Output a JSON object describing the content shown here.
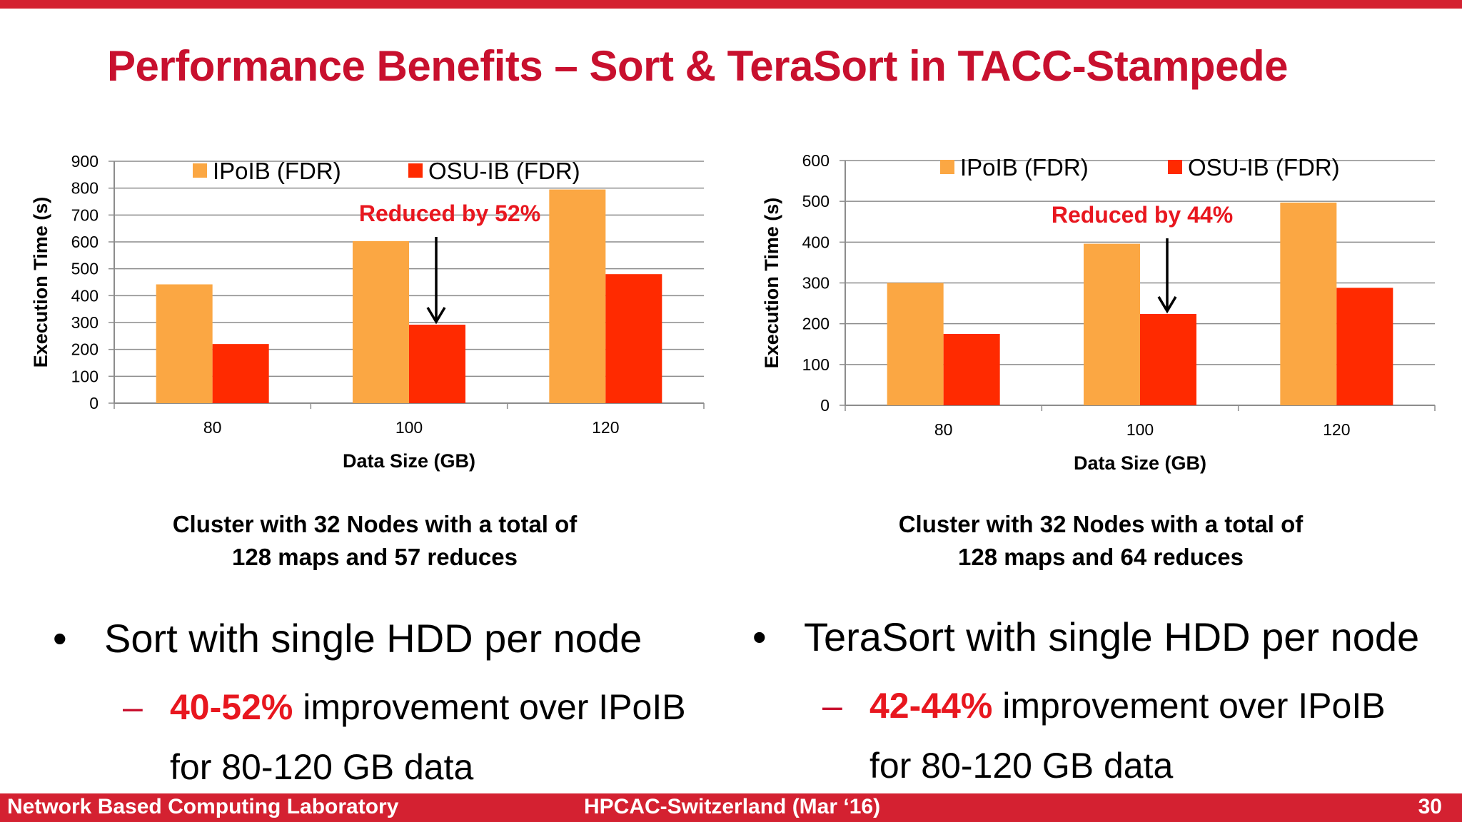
{
  "slide": {
    "title": "Performance Benefits – Sort & TeraSort in TACC-Stampede"
  },
  "colors": {
    "accent": "#d42131",
    "ipoib": "#fba743",
    "osu": "#ff2a00",
    "highlight": "#e8171f"
  },
  "chart_data": [
    {
      "type": "bar",
      "categories": [
        "80",
        "100",
        "120"
      ],
      "series": [
        {
          "name": "IPoIB (FDR)",
          "values": [
            442,
            603,
            795
          ]
        },
        {
          "name": "OSU-IB (FDR)",
          "values": [
            220,
            292,
            480
          ]
        }
      ],
      "xlabel": "Data Size (GB)",
      "ylabel": "Execution Time (s)",
      "ylim": [
        0,
        900
      ],
      "yticks": [
        "0",
        "100",
        "200",
        "300",
        "400",
        "500",
        "600",
        "700",
        "800",
        "900"
      ],
      "grid": true,
      "legend": "top",
      "annotation": {
        "text": "Reduced by 52%",
        "category": "100"
      }
    },
    {
      "type": "bar",
      "categories": [
        "80",
        "100",
        "120"
      ],
      "series": [
        {
          "name": "IPoIB (FDR)",
          "values": [
            300,
            396,
            497
          ]
        },
        {
          "name": "OSU-IB (FDR)",
          "values": [
            175,
            224,
            288
          ]
        }
      ],
      "xlabel": "Data Size (GB)",
      "ylabel": "Execution Time (s)",
      "ylim": [
        0,
        600
      ],
      "yticks": [
        "0",
        "100",
        "200",
        "300",
        "400",
        "500",
        "600"
      ],
      "grid": true,
      "legend": "top",
      "annotation": {
        "text": "Reduced by 44%",
        "category": "100"
      }
    }
  ],
  "captions": {
    "left": [
      "Cluster with 32 Nodes with a total of",
      "128 maps and 57 reduces"
    ],
    "right": [
      "Cluster with 32 Nodes with a total of",
      "128 maps and 64 reduces"
    ]
  },
  "bullets": {
    "left": {
      "dot": "•",
      "text": "Sort with single HDD per node",
      "dash": "–",
      "highlight": "40-52%",
      "rest": " improvement over IPoIB",
      "line2": "for 80-120 GB data"
    },
    "right": {
      "dot": "•",
      "text": "TeraSort with single HDD per node",
      "dash": "–",
      "highlight": "42-44%",
      "rest": " improvement over IPoIB",
      "line2": "for 80-120 GB data"
    }
  },
  "footer": {
    "left": "Network Based Computing Laboratory",
    "center": "HPCAC-Switzerland (Mar ‘16)",
    "right": "30"
  }
}
